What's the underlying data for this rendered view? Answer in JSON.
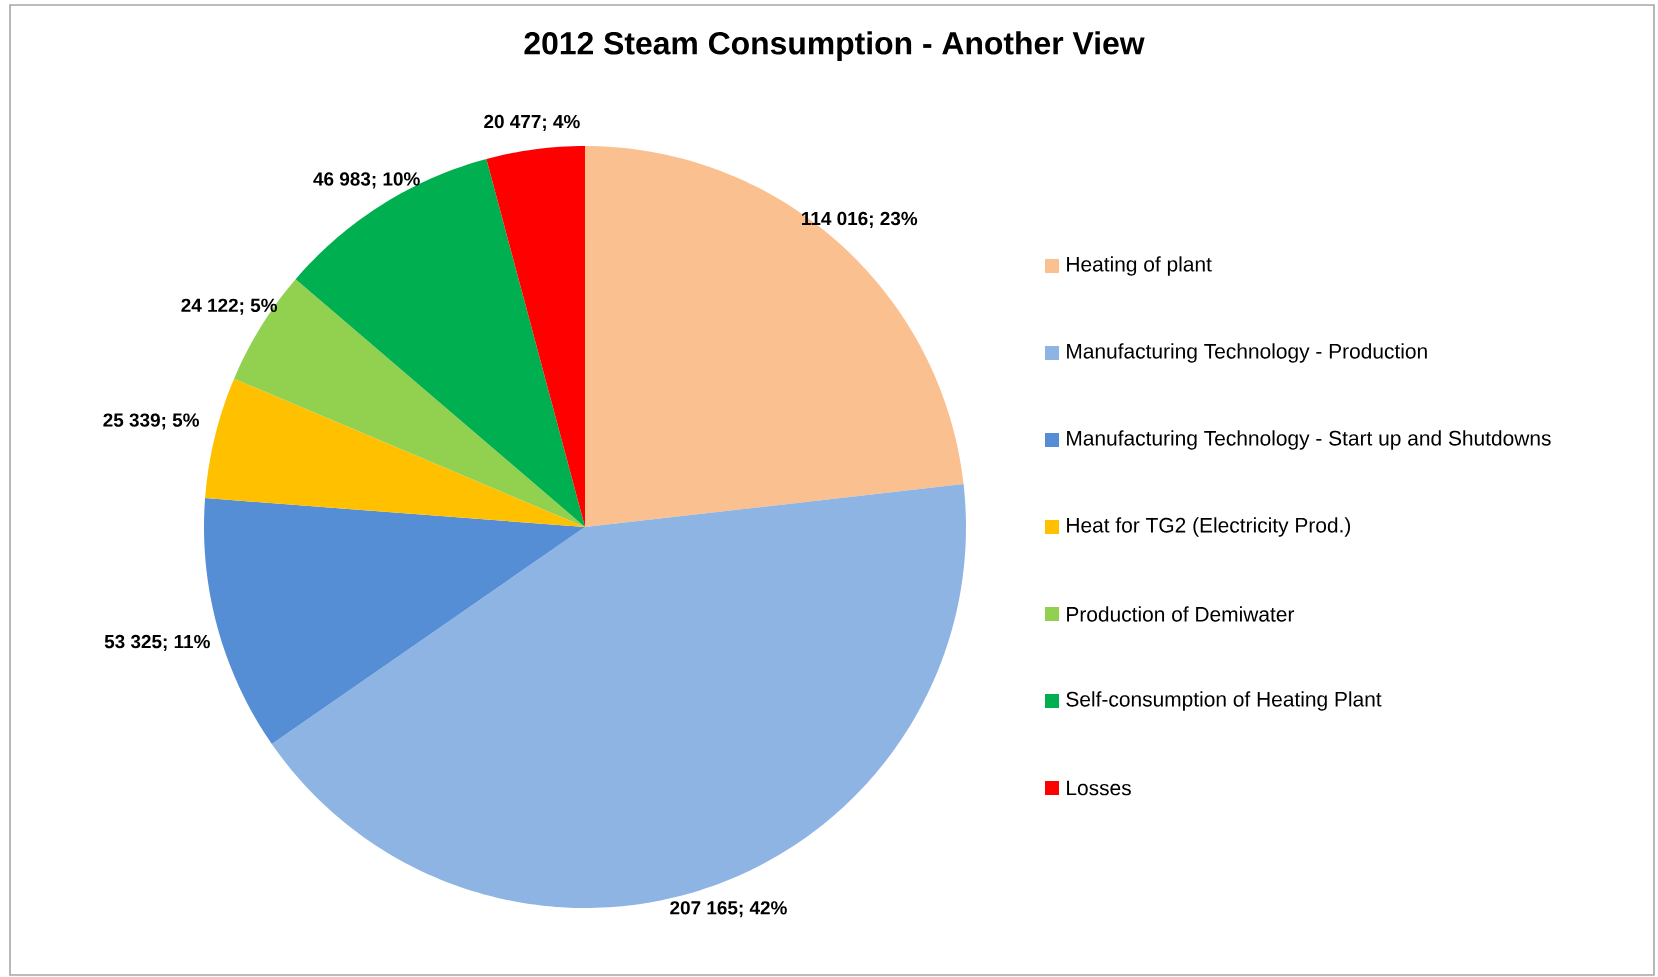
{
  "chart_data": {
    "type": "pie",
    "title": "2012 Steam Consumption - Another View",
    "categories": [
      "Heating of plant",
      "Manufacturing Technology - Production",
      "Manufacturing Technology - Start up and Shutdowns",
      "Heat for TG2 (Electricity Prod.)",
      "Production of Demiwater",
      "Self-consumption of Heating Plant",
      "Losses"
    ],
    "values": [
      114016,
      207165,
      53325,
      25339,
      24122,
      46983,
      20477
    ],
    "value_labels": [
      "114 016; 23%",
      "207 165; 42%",
      "53 325; 11%",
      "25 339; 5%",
      "24 122; 5%",
      "46 983; 10%",
      "20 477; 4%"
    ],
    "colors": [
      "#fac090",
      "#8eb4e3",
      "#558ed5",
      "#ffc000",
      "#92d050",
      "#00b050",
      "#ff0000"
    ],
    "legend": "right"
  }
}
